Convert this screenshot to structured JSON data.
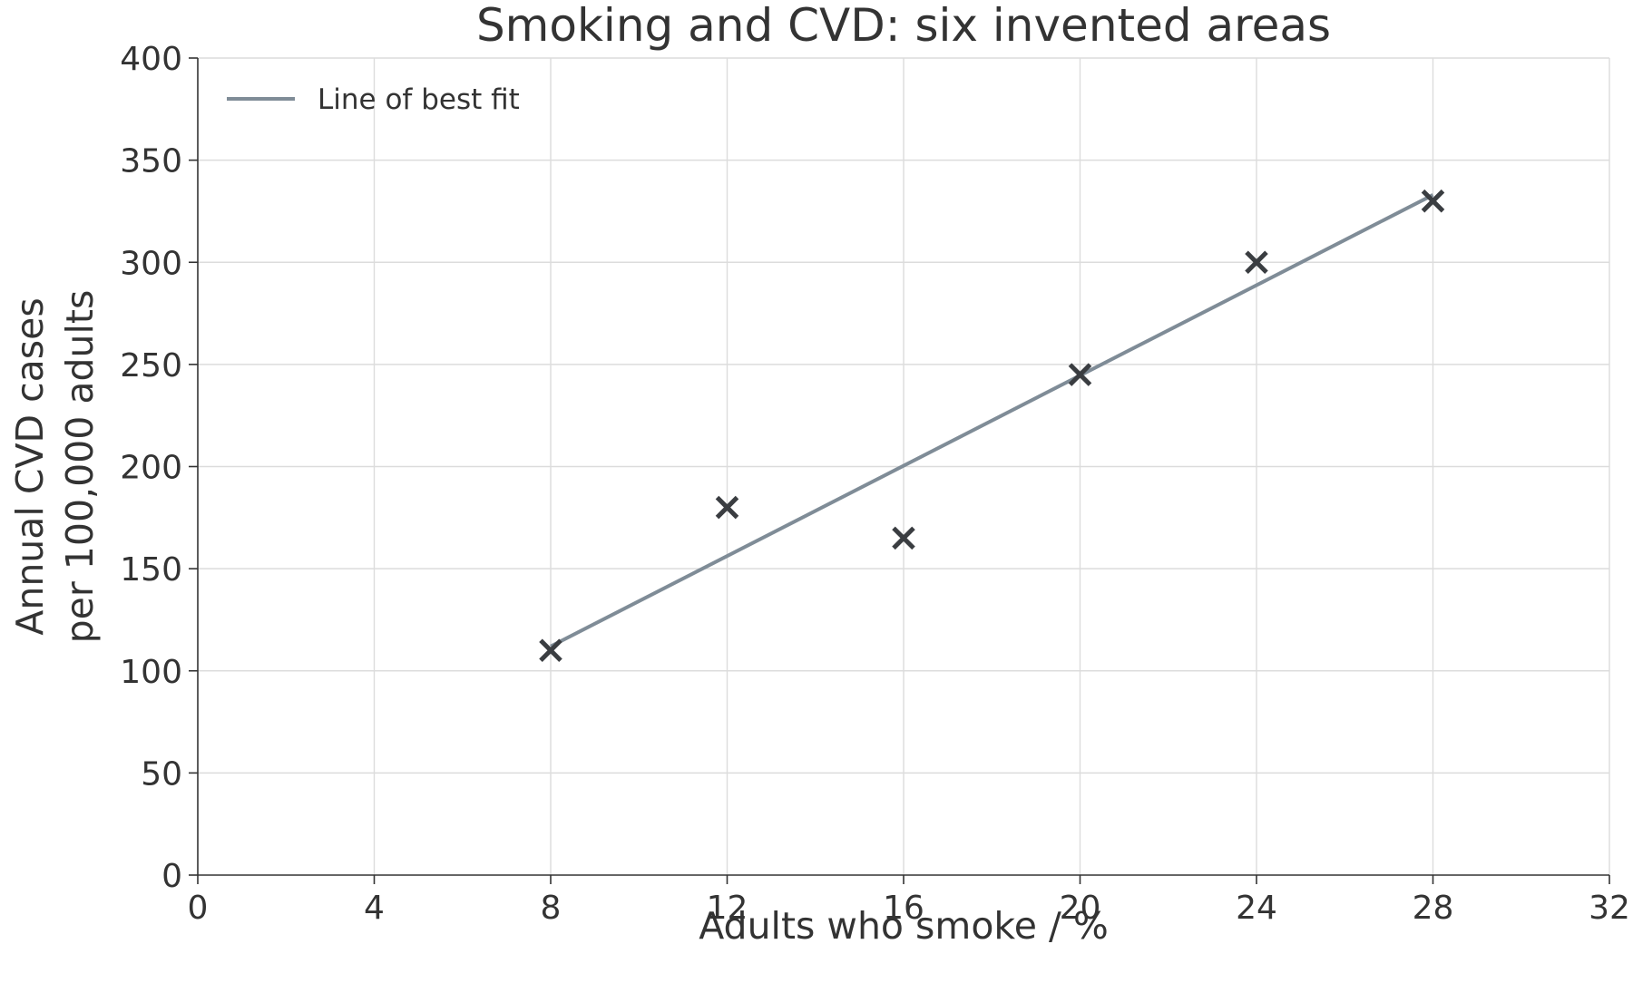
{
  "chart_data": {
    "type": "scatter",
    "title": "Smoking and CVD: six invented areas",
    "xlabel": "Adults who smoke / %",
    "ylabel_lines": [
      "Annual CVD cases",
      "per 100,000 adults"
    ],
    "xlim": [
      0,
      32
    ],
    "ylim": [
      0,
      400
    ],
    "xticks": [
      0,
      4,
      8,
      12,
      16,
      20,
      24,
      28,
      32
    ],
    "yticks": [
      0,
      50,
      100,
      150,
      200,
      250,
      300,
      350,
      400
    ],
    "grid": true,
    "legend": {
      "placement": "top-left",
      "entries": [
        "Line of best fit"
      ]
    },
    "series": [
      {
        "kind": "points",
        "marker": "x",
        "color": "#3a3d41",
        "points": [
          {
            "x": 8,
            "y": 110
          },
          {
            "x": 12,
            "y": 180
          },
          {
            "x": 16,
            "y": 165
          },
          {
            "x": 20,
            "y": 245
          },
          {
            "x": 24,
            "y": 300
          },
          {
            "x": 28,
            "y": 330
          }
        ]
      },
      {
        "kind": "line",
        "name": "Line of best fit",
        "color": "#7f8c97",
        "points": [
          {
            "x": 8,
            "y": 112
          },
          {
            "x": 28,
            "y": 333
          }
        ]
      }
    ]
  }
}
